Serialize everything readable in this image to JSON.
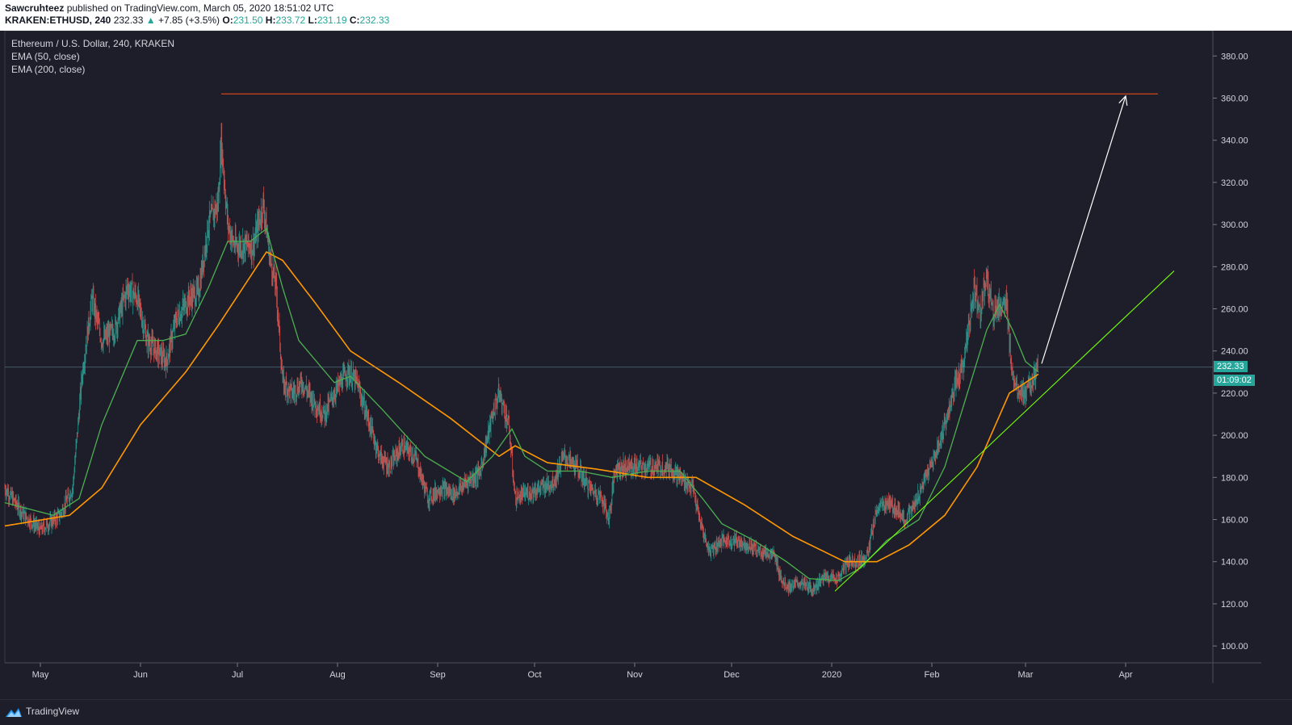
{
  "header": {
    "author": "Sawcruhteez",
    "published_text": "published on TradingView.com, March 05, 2020 18:51:02 UTC",
    "symbol": "KRAKEN:ETHUSD, 240",
    "last": "232.33",
    "change": "+7.85 (+3.5%)",
    "open_label": "O:",
    "open": "231.50",
    "high_label": "H:",
    "high": "233.72",
    "low_label": "L:",
    "low": "231.19",
    "close_label": "C:",
    "close": "232.33"
  },
  "legend": {
    "title": "Ethereum / U.S. Dollar, 240, KRAKEN",
    "ema50": "EMA (50, close)",
    "ema200": "EMA (200, close)"
  },
  "price_tags": {
    "last_price": "232.33",
    "countdown": "01:09:02"
  },
  "footer": {
    "brand": "TradingView"
  },
  "colors": {
    "background": "#1e1e2a",
    "up": "#26a69a",
    "down": "#ef5350",
    "ema50": "#4caf50",
    "ema200": "#ff9800",
    "resistance": "#e64a19",
    "trendline": "#76ff03",
    "arrow": "#ffffff"
  },
  "chart_data": {
    "type": "candlestick",
    "title": "Ethereum / U.S. Dollar, 240, KRAKEN",
    "y_ticks": [
      100,
      120,
      140,
      160,
      180,
      200,
      220,
      240,
      260,
      280,
      300,
      320,
      340,
      360,
      380
    ],
    "y_tick_labels": [
      "100.00",
      "120.00",
      "140.00",
      "160.00",
      "180.00",
      "200.00",
      "220.00",
      "240.00",
      "260.00",
      "280.00",
      "300.00",
      "320.00",
      "340.00",
      "360.00",
      "380.00"
    ],
    "ylim": [
      92,
      392
    ],
    "x_tick_labels": [
      "May",
      "Jun",
      "Jul",
      "Aug",
      "Sep",
      "Oct",
      "Nov",
      "Dec",
      "2020",
      "Feb",
      "Mar",
      "Apr"
    ],
    "x_tick_dates": [
      "2019-05-01",
      "2019-06-01",
      "2019-07-01",
      "2019-08-01",
      "2019-09-01",
      "2019-10-01",
      "2019-11-01",
      "2019-12-01",
      "2020-01-01",
      "2020-02-01",
      "2020-03-01",
      "2020-04-01"
    ],
    "xlim": [
      "2019-04-20",
      "2020-04-28"
    ],
    "price_path": [
      [
        "2019-04-20",
        175
      ],
      [
        "2019-04-26",
        162
      ],
      [
        "2019-05-01",
        155
      ],
      [
        "2019-05-07",
        162
      ],
      [
        "2019-05-11",
        175
      ],
      [
        "2019-05-14",
        230
      ],
      [
        "2019-05-17",
        265
      ],
      [
        "2019-05-20",
        245
      ],
      [
        "2019-05-24",
        250
      ],
      [
        "2019-05-28",
        270
      ],
      [
        "2019-05-31",
        265
      ],
      [
        "2019-06-03",
        245
      ],
      [
        "2019-06-06",
        240
      ],
      [
        "2019-06-09",
        235
      ],
      [
        "2019-06-12",
        255
      ],
      [
        "2019-06-16",
        265
      ],
      [
        "2019-06-19",
        268
      ],
      [
        "2019-06-22",
        300
      ],
      [
        "2019-06-25",
        310
      ],
      [
        "2019-06-26",
        340
      ],
      [
        "2019-06-28",
        300
      ],
      [
        "2019-06-30",
        290
      ],
      [
        "2019-07-03",
        290
      ],
      [
        "2019-07-06",
        290
      ],
      [
        "2019-07-09",
        310
      ],
      [
        "2019-07-11",
        285
      ],
      [
        "2019-07-13",
        270
      ],
      [
        "2019-07-15",
        225
      ],
      [
        "2019-07-18",
        220
      ],
      [
        "2019-07-21",
        225
      ],
      [
        "2019-07-25",
        215
      ],
      [
        "2019-07-28",
        210
      ],
      [
        "2019-07-31",
        220
      ],
      [
        "2019-08-04",
        230
      ],
      [
        "2019-08-07",
        225
      ],
      [
        "2019-08-10",
        210
      ],
      [
        "2019-08-14",
        190
      ],
      [
        "2019-08-17",
        185
      ],
      [
        "2019-08-21",
        195
      ],
      [
        "2019-08-25",
        190
      ],
      [
        "2019-08-29",
        170
      ],
      [
        "2019-09-02",
        175
      ],
      [
        "2019-09-06",
        172
      ],
      [
        "2019-09-10",
        178
      ],
      [
        "2019-09-14",
        182
      ],
      [
        "2019-09-18",
        210
      ],
      [
        "2019-09-20",
        220
      ],
      [
        "2019-09-23",
        205
      ],
      [
        "2019-09-25",
        170
      ],
      [
        "2019-09-28",
        172
      ],
      [
        "2019-10-03",
        175
      ],
      [
        "2019-10-07",
        178
      ],
      [
        "2019-10-10",
        190
      ],
      [
        "2019-10-14",
        185
      ],
      [
        "2019-10-18",
        175
      ],
      [
        "2019-10-22",
        170
      ],
      [
        "2019-10-24",
        160
      ],
      [
        "2019-10-26",
        185
      ],
      [
        "2019-10-30",
        185
      ],
      [
        "2019-11-04",
        185
      ],
      [
        "2019-11-08",
        185
      ],
      [
        "2019-11-12",
        185
      ],
      [
        "2019-11-15",
        180
      ],
      [
        "2019-11-19",
        175
      ],
      [
        "2019-11-21",
        160
      ],
      [
        "2019-11-24",
        145
      ],
      [
        "2019-11-28",
        150
      ],
      [
        "2019-12-02",
        150
      ],
      [
        "2019-12-06",
        148
      ],
      [
        "2019-12-10",
        145
      ],
      [
        "2019-12-14",
        143
      ],
      [
        "2019-12-17",
        130
      ],
      [
        "2019-12-19",
        128
      ],
      [
        "2019-12-22",
        130
      ],
      [
        "2019-12-26",
        127
      ],
      [
        "2019-12-30",
        133
      ],
      [
        "2020-01-03",
        132
      ],
      [
        "2020-01-06",
        140
      ],
      [
        "2020-01-09",
        140
      ],
      [
        "2020-01-12",
        143
      ],
      [
        "2020-01-15",
        165
      ],
      [
        "2020-01-18",
        168
      ],
      [
        "2020-01-21",
        165
      ],
      [
        "2020-01-24",
        160
      ],
      [
        "2020-01-27",
        168
      ],
      [
        "2020-01-30",
        180
      ],
      [
        "2020-02-02",
        190
      ],
      [
        "2020-02-05",
        205
      ],
      [
        "2020-02-08",
        222
      ],
      [
        "2020-02-11",
        235
      ],
      [
        "2020-02-14",
        270
      ],
      [
        "2020-02-16",
        260
      ],
      [
        "2020-02-18",
        275
      ],
      [
        "2020-02-20",
        258
      ],
      [
        "2020-02-22",
        262
      ],
      [
        "2020-02-24",
        262
      ],
      [
        "2020-02-26",
        228
      ],
      [
        "2020-02-28",
        222
      ],
      [
        "2020-03-01",
        220
      ],
      [
        "2020-03-03",
        225
      ],
      [
        "2020-03-05",
        232
      ]
    ],
    "ema50_path": [
      [
        "2019-04-20",
        168
      ],
      [
        "2019-05-05",
        162
      ],
      [
        "2019-05-13",
        170
      ],
      [
        "2019-05-20",
        205
      ],
      [
        "2019-05-31",
        245
      ],
      [
        "2019-06-08",
        245
      ],
      [
        "2019-06-15",
        248
      ],
      [
        "2019-06-22",
        270
      ],
      [
        "2019-06-28",
        292
      ],
      [
        "2019-07-05",
        292
      ],
      [
        "2019-07-10",
        298
      ],
      [
        "2019-07-15",
        270
      ],
      [
        "2019-07-20",
        245
      ],
      [
        "2019-07-31",
        225
      ],
      [
        "2019-08-05",
        228
      ],
      [
        "2019-08-15",
        212
      ],
      [
        "2019-08-28",
        190
      ],
      [
        "2019-09-10",
        178
      ],
      [
        "2019-09-18",
        190
      ],
      [
        "2019-09-24",
        203
      ],
      [
        "2019-09-28",
        190
      ],
      [
        "2019-10-05",
        183
      ],
      [
        "2019-10-15",
        183
      ],
      [
        "2019-10-25",
        180
      ],
      [
        "2019-11-05",
        183
      ],
      [
        "2019-11-15",
        183
      ],
      [
        "2019-11-22",
        170
      ],
      [
        "2019-11-28",
        158
      ],
      [
        "2019-12-08",
        150
      ],
      [
        "2019-12-18",
        140
      ],
      [
        "2019-12-25",
        132
      ],
      [
        "2020-01-03",
        131
      ],
      [
        "2020-01-10",
        137
      ],
      [
        "2020-01-18",
        150
      ],
      [
        "2020-01-28",
        160
      ],
      [
        "2020-02-05",
        185
      ],
      [
        "2020-02-11",
        215
      ],
      [
        "2020-02-18",
        250
      ],
      [
        "2020-02-22",
        262
      ],
      [
        "2020-02-26",
        250
      ],
      [
        "2020-03-01",
        235
      ],
      [
        "2020-03-05",
        230
      ]
    ],
    "ema200_path": [
      [
        "2019-04-20",
        157
      ],
      [
        "2019-05-10",
        162
      ],
      [
        "2019-05-20",
        175
      ],
      [
        "2019-06-01",
        205
      ],
      [
        "2019-06-15",
        230
      ],
      [
        "2019-06-25",
        252
      ],
      [
        "2019-07-10",
        287
      ],
      [
        "2019-07-15",
        283
      ],
      [
        "2019-07-25",
        263
      ],
      [
        "2019-08-05",
        240
      ],
      [
        "2019-08-20",
        225
      ],
      [
        "2019-09-05",
        208
      ],
      [
        "2019-09-20",
        190
      ],
      [
        "2019-09-25",
        195
      ],
      [
        "2019-10-05",
        187
      ],
      [
        "2019-10-20",
        184
      ],
      [
        "2019-11-05",
        180
      ],
      [
        "2019-11-20",
        180
      ],
      [
        "2019-12-05",
        167
      ],
      [
        "2019-12-20",
        152
      ],
      [
        "2020-01-05",
        140
      ],
      [
        "2020-01-15",
        140
      ],
      [
        "2020-01-25",
        148
      ],
      [
        "2020-02-05",
        162
      ],
      [
        "2020-02-15",
        185
      ],
      [
        "2020-02-25",
        220
      ],
      [
        "2020-03-05",
        229
      ]
    ],
    "annotations": {
      "resistance_line": {
        "start": "2019-06-26",
        "end": "2020-04-11",
        "y": 362
      },
      "trendline": {
        "start": [
          "2020-01-02",
          126
        ],
        "end": [
          "2020-04-16",
          278
        ]
      },
      "arrow": {
        "start": [
          "2020-03-06",
          234
        ],
        "end": [
          "2020-04-01",
          361
        ]
      },
      "last_price_line": 232.33
    }
  }
}
